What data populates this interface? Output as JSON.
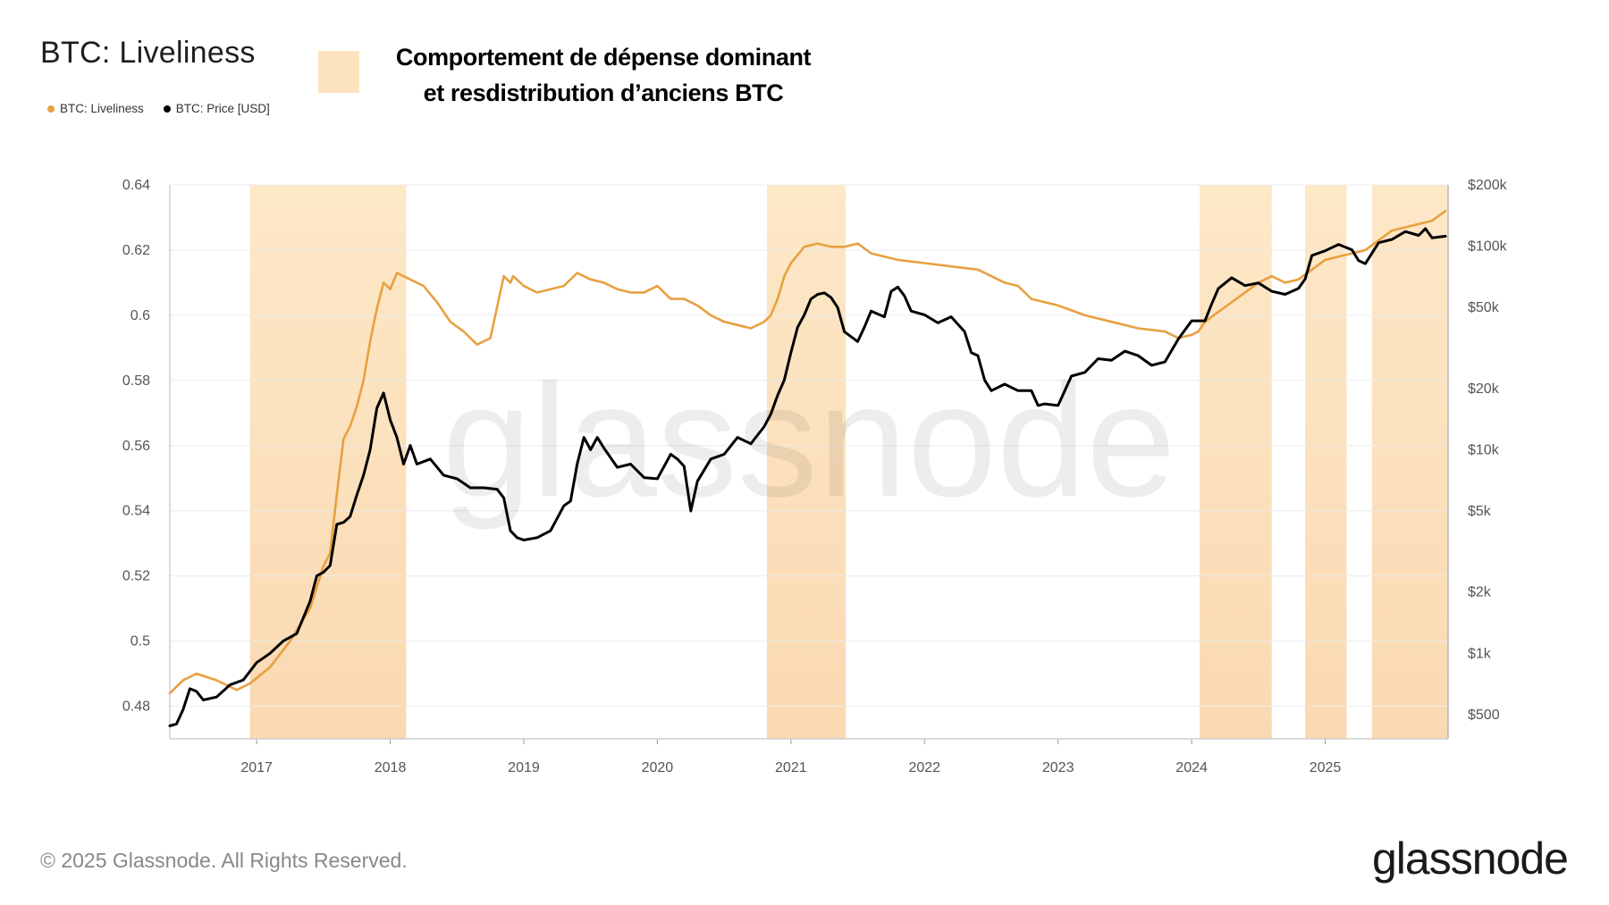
{
  "header": {
    "title": "BTC: Liveliness",
    "legend": [
      {
        "label": "BTC: Liveliness",
        "color": "#e8a040"
      },
      {
        "label": "BTC: Price [USD]",
        "color": "#000000"
      }
    ]
  },
  "annotation": {
    "line1": "Comportement de dépense dominant",
    "line2": "et resdistribution d’anciens BTC",
    "color": "#fde3bf"
  },
  "footer": {
    "copyright": "© 2025 Glassnode. All Rights Reserved.",
    "logo": "glassnode",
    "watermark": "glassnode"
  },
  "chart_data": {
    "type": "line",
    "title": "BTC: Liveliness",
    "x_range": [
      2016.35,
      2025.92
    ],
    "x_ticks": [
      {
        "v": 2017,
        "label": "2017"
      },
      {
        "v": 2018,
        "label": "2018"
      },
      {
        "v": 2019,
        "label": "2019"
      },
      {
        "v": 2020,
        "label": "2020"
      },
      {
        "v": 2021,
        "label": "2021"
      },
      {
        "v": 2022,
        "label": "2022"
      },
      {
        "v": 2023,
        "label": "2023"
      },
      {
        "v": 2024,
        "label": "2024"
      },
      {
        "v": 2025,
        "label": "2025"
      }
    ],
    "y_left": {
      "range": [
        0.47,
        0.64
      ],
      "ticks": [
        {
          "v": 0.48,
          "label": "0.48"
        },
        {
          "v": 0.5,
          "label": "0.5"
        },
        {
          "v": 0.52,
          "label": "0.52"
        },
        {
          "v": 0.54,
          "label": "0.54"
        },
        {
          "v": 0.56,
          "label": "0.56"
        },
        {
          "v": 0.58,
          "label": "0.58"
        },
        {
          "v": 0.6,
          "label": "0.6"
        },
        {
          "v": 0.62,
          "label": "0.62"
        },
        {
          "v": 0.64,
          "label": "0.64"
        }
      ]
    },
    "y_right": {
      "scale": "log",
      "range": [
        380,
        200000
      ],
      "ticks": [
        {
          "v": 500,
          "label": "$500"
        },
        {
          "v": 1000,
          "label": "$1k"
        },
        {
          "v": 2000,
          "label": "$2k"
        },
        {
          "v": 5000,
          "label": "$5k"
        },
        {
          "v": 10000,
          "label": "$10k"
        },
        {
          "v": 20000,
          "label": "$20k"
        },
        {
          "v": 50000,
          "label": "$50k"
        },
        {
          "v": 100000,
          "label": "$100k"
        },
        {
          "v": 200000,
          "label": "$200k"
        }
      ]
    },
    "highlight_periods": [
      [
        2016.95,
        2018.12
      ],
      [
        2020.82,
        2021.41
      ],
      [
        2024.06,
        2024.6
      ],
      [
        2024.85,
        2025.16
      ],
      [
        2025.35,
        2025.92
      ]
    ],
    "series": [
      {
        "name": "BTC: Liveliness",
        "axis": "left",
        "color": "#e8a040",
        "x": [
          2016.35,
          2016.45,
          2016.55,
          2016.7,
          2016.85,
          2016.95,
          2017.1,
          2017.25,
          2017.4,
          2017.5,
          2017.55,
          2017.6,
          2017.65,
          2017.7,
          2017.75,
          2017.8,
          2017.85,
          2017.9,
          2017.95,
          2018.0,
          2018.05,
          2018.15,
          2018.25,
          2018.35,
          2018.45,
          2018.55,
          2018.65,
          2018.75,
          2018.85,
          2018.9,
          2018.92,
          2019.0,
          2019.1,
          2019.2,
          2019.3,
          2019.4,
          2019.5,
          2019.6,
          2019.7,
          2019.8,
          2019.9,
          2020.0,
          2020.1,
          2020.2,
          2020.3,
          2020.4,
          2020.5,
          2020.6,
          2020.7,
          2020.8,
          2020.85,
          2020.9,
          2020.95,
          2021.0,
          2021.1,
          2021.2,
          2021.3,
          2021.4,
          2021.5,
          2021.6,
          2021.8,
          2022.0,
          2022.2,
          2022.4,
          2022.5,
          2022.6,
          2022.7,
          2022.8,
          2022.9,
          2023.0,
          2023.2,
          2023.4,
          2023.6,
          2023.8,
          2023.9,
          2024.0,
          2024.05,
          2024.1,
          2024.2,
          2024.3,
          2024.4,
          2024.5,
          2024.6,
          2024.7,
          2024.8,
          2024.9,
          2025.0,
          2025.1,
          2025.2,
          2025.3,
          2025.4,
          2025.5,
          2025.6,
          2025.7,
          2025.8,
          2025.9
        ],
        "values": [
          0.484,
          0.488,
          0.49,
          0.488,
          0.485,
          0.487,
          0.492,
          0.5,
          0.51,
          0.523,
          0.527,
          0.545,
          0.562,
          0.566,
          0.572,
          0.58,
          0.592,
          0.602,
          0.61,
          0.608,
          0.613,
          0.611,
          0.609,
          0.604,
          0.598,
          0.595,
          0.591,
          0.593,
          0.612,
          0.61,
          0.612,
          0.609,
          0.607,
          0.608,
          0.609,
          0.613,
          0.611,
          0.61,
          0.608,
          0.607,
          0.607,
          0.609,
          0.605,
          0.605,
          0.603,
          0.6,
          0.598,
          0.597,
          0.596,
          0.598,
          0.6,
          0.605,
          0.612,
          0.616,
          0.621,
          0.622,
          0.621,
          0.621,
          0.622,
          0.619,
          0.617,
          0.616,
          0.615,
          0.614,
          0.612,
          0.61,
          0.609,
          0.605,
          0.604,
          0.603,
          0.6,
          0.598,
          0.596,
          0.595,
          0.593,
          0.594,
          0.595,
          0.598,
          0.601,
          0.604,
          0.607,
          0.61,
          0.612,
          0.61,
          0.611,
          0.614,
          0.617,
          0.618,
          0.619,
          0.62,
          0.623,
          0.626,
          0.627,
          0.628,
          0.629,
          0.632
        ]
      },
      {
        "name": "BTC: Price [USD]",
        "axis": "right",
        "color": "#000000",
        "x": [
          2016.35,
          2016.4,
          2016.45,
          2016.5,
          2016.55,
          2016.6,
          2016.7,
          2016.8,
          2016.9,
          2017.0,
          2017.1,
          2017.2,
          2017.3,
          2017.4,
          2017.45,
          2017.5,
          2017.55,
          2017.6,
          2017.65,
          2017.7,
          2017.75,
          2017.8,
          2017.85,
          2017.9,
          2017.95,
          2018.0,
          2018.05,
          2018.1,
          2018.15,
          2018.2,
          2018.3,
          2018.4,
          2018.5,
          2018.6,
          2018.7,
          2018.8,
          2018.85,
          2018.9,
          2018.95,
          2019.0,
          2019.1,
          2019.2,
          2019.3,
          2019.35,
          2019.4,
          2019.45,
          2019.5,
          2019.55,
          2019.6,
          2019.7,
          2019.8,
          2019.9,
          2020.0,
          2020.1,
          2020.15,
          2020.2,
          2020.25,
          2020.3,
          2020.4,
          2020.5,
          2020.6,
          2020.7,
          2020.8,
          2020.85,
          2020.9,
          2020.95,
          2021.0,
          2021.05,
          2021.1,
          2021.15,
          2021.2,
          2021.25,
          2021.3,
          2021.35,
          2021.4,
          2021.5,
          2021.55,
          2021.6,
          2021.7,
          2021.75,
          2021.8,
          2021.85,
          2021.9,
          2022.0,
          2022.1,
          2022.2,
          2022.3,
          2022.35,
          2022.4,
          2022.45,
          2022.5,
          2022.6,
          2022.7,
          2022.8,
          2022.85,
          2022.9,
          2023.0,
          2023.1,
          2023.2,
          2023.3,
          2023.4,
          2023.5,
          2023.6,
          2023.7,
          2023.8,
          2023.9,
          2024.0,
          2024.1,
          2024.15,
          2024.2,
          2024.3,
          2024.4,
          2024.5,
          2024.6,
          2024.7,
          2024.8,
          2024.85,
          2024.9,
          2025.0,
          2025.1,
          2025.2,
          2025.25,
          2025.3,
          2025.4,
          2025.5,
          2025.6,
          2025.7,
          2025.75,
          2025.8,
          2025.9
        ],
        "values": [
          440,
          450,
          530,
          670,
          650,
          590,
          610,
          700,
          740,
          900,
          1000,
          1150,
          1250,
          1800,
          2400,
          2500,
          2700,
          4300,
          4400,
          4700,
          6000,
          7500,
          10000,
          16000,
          19000,
          14000,
          11500,
          8500,
          10500,
          8500,
          9000,
          7500,
          7200,
          6500,
          6500,
          6400,
          5800,
          4000,
          3700,
          3600,
          3700,
          4000,
          5300,
          5600,
          8500,
          11500,
          10000,
          11500,
          10200,
          8200,
          8500,
          7300,
          7200,
          9500,
          9000,
          8300,
          5000,
          7000,
          9000,
          9500,
          11500,
          10700,
          13000,
          15000,
          18500,
          22000,
          30000,
          40000,
          46000,
          55000,
          58000,
          59000,
          56000,
          50000,
          38000,
          34000,
          40000,
          48000,
          45000,
          60000,
          63000,
          57000,
          48000,
          46000,
          42000,
          45000,
          38000,
          30000,
          29000,
          22000,
          19500,
          21000,
          19500,
          19500,
          16500,
          16800,
          16500,
          23000,
          24000,
          28000,
          27500,
          30500,
          29000,
          26000,
          27000,
          35000,
          43000,
          43000,
          52000,
          62000,
          70000,
          64000,
          66000,
          60000,
          58000,
          62000,
          69000,
          90000,
          95000,
          102000,
          96000,
          85000,
          82000,
          104000,
          108000,
          118000,
          113000,
          122000,
          110000,
          112000
        ]
      }
    ]
  }
}
